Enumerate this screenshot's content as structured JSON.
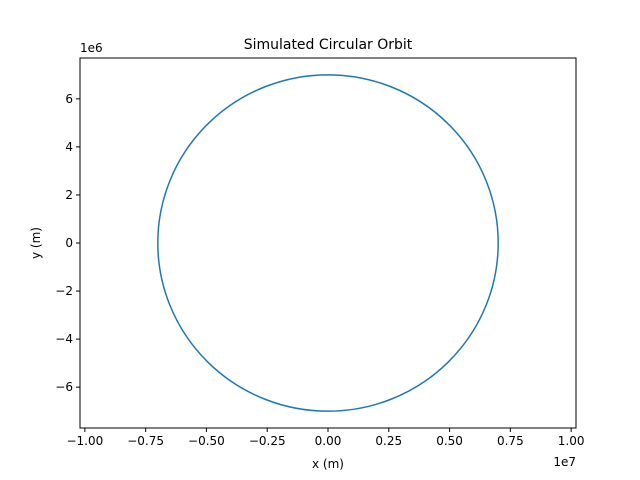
{
  "chart_data": {
    "type": "line",
    "title": "Simulated Circular Orbit",
    "xlabel": "x (m)",
    "ylabel": "y (m)",
    "x_offset_text": "1e7",
    "y_offset_text": "1e6",
    "xlim": [
      -10200000,
      10200000
    ],
    "ylim": [
      -7700000,
      7700000
    ],
    "x_ticks": [
      -1.0,
      -0.75,
      -0.5,
      -0.25,
      0.0,
      0.25,
      0.5,
      0.75,
      1.0
    ],
    "x_tick_labels": [
      "−1.00",
      "−0.75",
      "−0.50",
      "−0.25",
      "0.00",
      "0.25",
      "0.50",
      "0.75",
      "1.00"
    ],
    "x_tick_scale": 10000000,
    "y_ticks": [
      -6,
      -4,
      -2,
      0,
      2,
      4,
      6
    ],
    "y_tick_labels": [
      "−6",
      "−4",
      "−2",
      "0",
      "2",
      "4",
      "6"
    ],
    "y_tick_scale": 1000000,
    "grid": false,
    "series": [
      {
        "shape": "circle",
        "center": [
          0,
          0
        ],
        "radius": 7000000,
        "color": "#1f77b4"
      }
    ]
  }
}
